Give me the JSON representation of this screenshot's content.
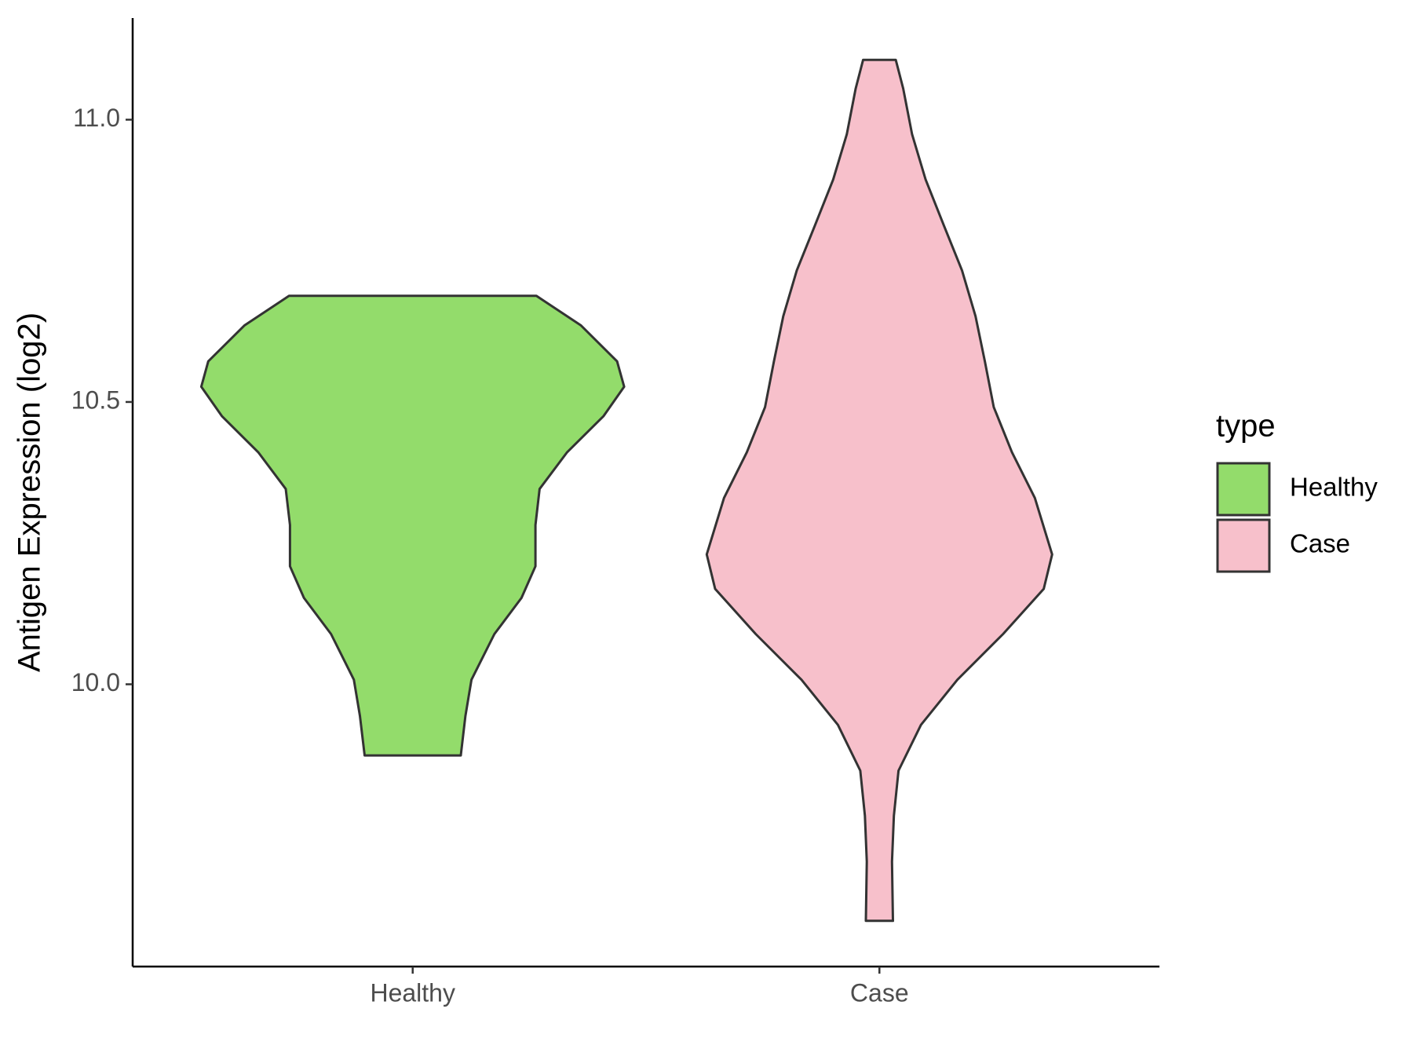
{
  "chart_data": {
    "type": "violin",
    "y_label": "Antigen Expression (log2)",
    "categories": [
      "Healthy",
      "Case"
    ],
    "ylim": [
      9.5,
      11.18
    ],
    "yticks": [
      {
        "value": 10,
        "label": "10.0"
      },
      10.5,
      {
        "value": 11,
        "label": "11.0"
      }
    ],
    "legend_title": "type",
    "legend_position": "right",
    "series": [
      {
        "name": "Healthy",
        "color": "#93dc6b",
        "values": [
          10.688,
          10.636,
          10.572,
          10.527,
          10.475,
          10.411,
          10.346,
          10.282,
          10.209,
          10.153,
          10.089,
          10.008,
          9.944,
          9.874
        ],
        "widths": [
          0.265,
          0.36,
          0.438,
          0.453,
          0.409,
          0.331,
          0.272,
          0.263,
          0.263,
          0.233,
          0.175,
          0.126,
          0.113,
          0.103
        ]
      },
      {
        "name": "Case",
        "color": "#f7c0cb",
        "values": [
          11.106,
          11.055,
          10.974,
          10.894,
          10.813,
          10.733,
          10.652,
          10.572,
          10.491,
          10.411,
          10.33,
          10.23,
          10.169,
          10.089,
          10.008,
          9.928,
          9.847,
          9.767,
          9.686,
          9.581
        ],
        "widths": [
          0.035,
          0.051,
          0.07,
          0.099,
          0.138,
          0.177,
          0.206,
          0.226,
          0.245,
          0.284,
          0.333,
          0.37,
          0.352,
          0.265,
          0.167,
          0.089,
          0.041,
          0.031,
          0.027,
          0.029
        ]
      }
    ]
  }
}
